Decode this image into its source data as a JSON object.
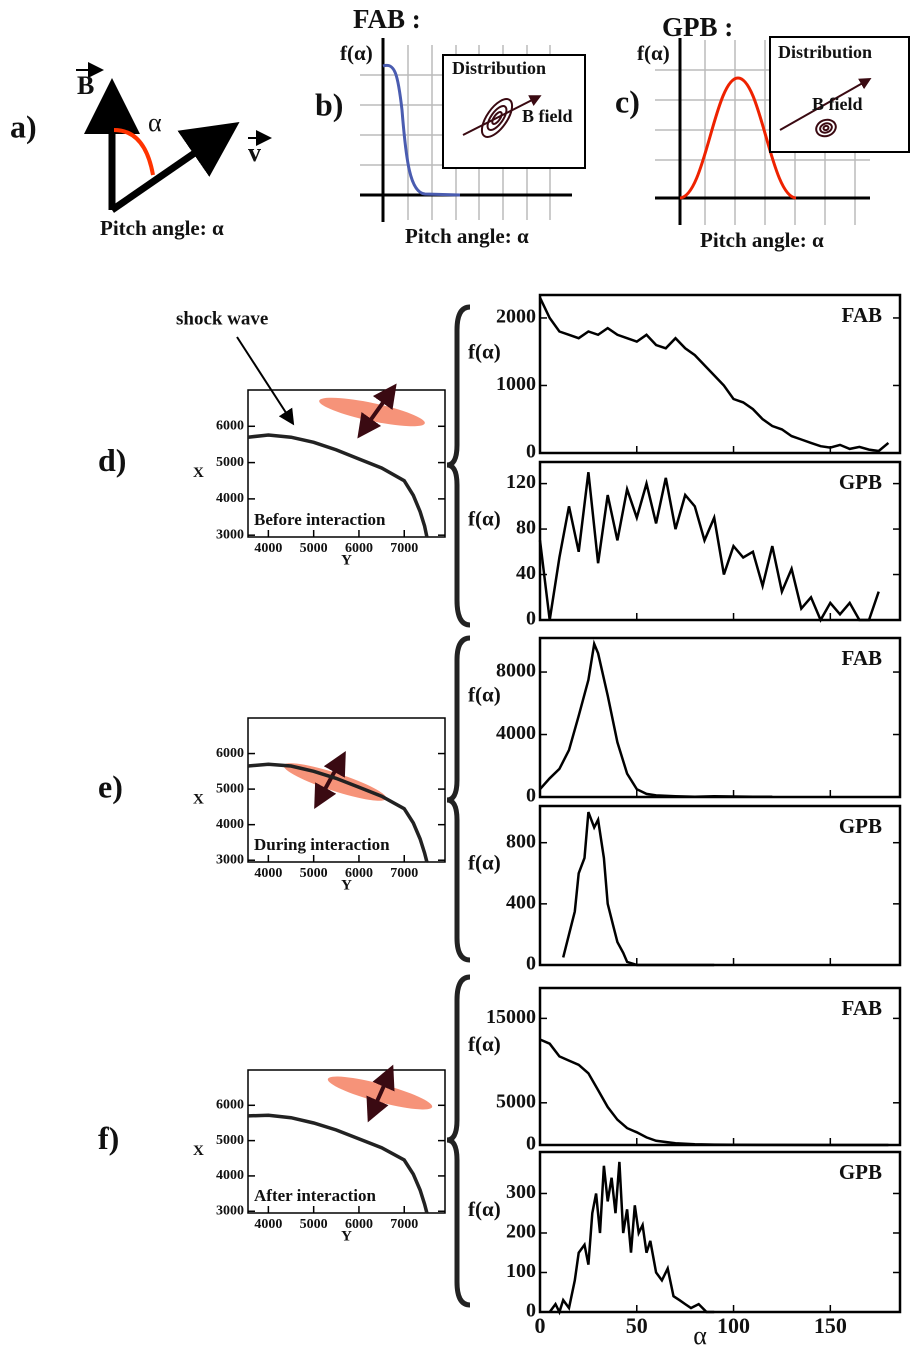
{
  "schematic": {
    "a": {
      "panel": "a)",
      "b_label": "B",
      "angle": "α",
      "v_label": "v",
      "caption": "Pitch angle: α"
    },
    "b": {
      "panel": "b)",
      "title": "FAB :",
      "ylabel": "f(α)",
      "inset_title": "Distribution",
      "inset_label": "B field",
      "caption": "Pitch angle: α"
    },
    "c": {
      "panel": "c)",
      "title": "GPB :",
      "ylabel": "f(α)",
      "inset_title": "Distribution",
      "inset_label": "B field",
      "caption": "Pitch angle: α"
    }
  },
  "chart_data": [
    {
      "type": "line",
      "panel": "d)",
      "callout": "shock wave",
      "annotation": "Before interaction",
      "xlabel": "Y",
      "ylabel": "X",
      "color": "#222222",
      "x": [
        3550,
        4000,
        4500,
        5000,
        5500,
        6000,
        6500,
        7000,
        7200,
        7350,
        7450,
        7500
      ],
      "values": [
        5700,
        5760,
        5700,
        5560,
        5350,
        5100,
        4850,
        4500,
        4100,
        3650,
        3250,
        2950
      ],
      "xlim": [
        3550,
        7900
      ],
      "ylim": [
        2950,
        7000
      ],
      "xticks": [
        4000,
        5000,
        6000,
        7000
      ],
      "yticks": [
        3000,
        4000,
        5000,
        6000
      ]
    },
    {
      "type": "line",
      "label": "FAB",
      "ylabel": "f(α)",
      "color": "#000000",
      "x": [
        0,
        5,
        10,
        15,
        20,
        25,
        30,
        35,
        40,
        45,
        50,
        55,
        60,
        65,
        70,
        75,
        80,
        85,
        90,
        95,
        100,
        105,
        110,
        115,
        120,
        125,
        130,
        135,
        140,
        145,
        150,
        155,
        160,
        165,
        170,
        175,
        180
      ],
      "values": [
        2300,
        2000,
        1800,
        1750,
        1700,
        1800,
        1750,
        1850,
        1750,
        1700,
        1650,
        1750,
        1600,
        1550,
        1700,
        1550,
        1450,
        1300,
        1150,
        1000,
        800,
        750,
        650,
        500,
        400,
        350,
        250,
        200,
        150,
        100,
        80,
        120,
        60,
        90,
        50,
        30,
        150
      ],
      "xlim": [
        0,
        186
      ],
      "ylim": [
        0,
        2340
      ],
      "xticks": [
        0,
        50,
        100,
        150
      ],
      "yticks": [
        0,
        1000,
        2000
      ]
    },
    {
      "type": "line",
      "label": "GPB",
      "ylabel": "f(α)",
      "color": "#000000",
      "x": [
        0,
        5,
        10,
        15,
        20,
        25,
        30,
        35,
        40,
        45,
        50,
        55,
        60,
        65,
        70,
        75,
        80,
        85,
        90,
        95,
        100,
        105,
        110,
        115,
        120,
        125,
        130,
        135,
        140,
        145,
        150,
        155,
        160,
        165,
        170,
        175
      ],
      "values": [
        70,
        0,
        55,
        100,
        60,
        130,
        50,
        110,
        70,
        115,
        90,
        120,
        85,
        125,
        80,
        110,
        100,
        70,
        90,
        40,
        65,
        55,
        60,
        30,
        65,
        25,
        45,
        10,
        20,
        0,
        15,
        5,
        15,
        0,
        0,
        25
      ],
      "xlim": [
        0,
        186
      ],
      "ylim": [
        0,
        139
      ],
      "xticks": [
        0,
        50,
        100,
        150
      ],
      "yticks": [
        0,
        40,
        80,
        120
      ]
    },
    {
      "type": "line",
      "panel": "e)",
      "annotation": "During interaction",
      "xlabel": "Y",
      "ylabel": "X",
      "color": "#222222",
      "x": [
        3550,
        4000,
        4500,
        5000,
        5500,
        6000,
        6500,
        7000,
        7200,
        7350,
        7450,
        7500
      ],
      "values": [
        5650,
        5700,
        5650,
        5500,
        5300,
        5050,
        4800,
        4450,
        4050,
        3600,
        3200,
        2950
      ],
      "xlim": [
        3550,
        7900
      ],
      "ylim": [
        2950,
        7000
      ],
      "xticks": [
        4000,
        5000,
        6000,
        7000
      ],
      "yticks": [
        3000,
        4000,
        5000,
        6000
      ]
    },
    {
      "type": "line",
      "label": "FAB",
      "ylabel": "f(α)",
      "color": "#000000",
      "x": [
        0,
        5,
        10,
        15,
        20,
        25,
        28,
        30,
        35,
        40,
        45,
        50,
        55,
        60,
        70,
        80,
        90,
        100,
        110,
        120
      ],
      "values": [
        500,
        1200,
        1800,
        3000,
        5200,
        7500,
        9800,
        9200,
        6500,
        3500,
        1500,
        500,
        200,
        100,
        50,
        20,
        50,
        30,
        20,
        20
      ],
      "xlim": [
        0,
        186
      ],
      "ylim": [
        0,
        10180
      ],
      "xticks": [
        0,
        50,
        100,
        150
      ],
      "yticks": [
        0,
        4000,
        8000
      ]
    },
    {
      "type": "line",
      "label": "GPB",
      "ylabel": "f(α)",
      "color": "#000000",
      "x": [
        12,
        15,
        18,
        20,
        23,
        25,
        28,
        30,
        33,
        35,
        38,
        40,
        43,
        45,
        50,
        60,
        70,
        80,
        90
      ],
      "values": [
        50,
        200,
        350,
        600,
        700,
        1000,
        900,
        950,
        700,
        400,
        250,
        150,
        80,
        20,
        0,
        0,
        0,
        0,
        0
      ],
      "xlim": [
        0,
        186
      ],
      "ylim": [
        0,
        1040
      ],
      "xticks": [
        0,
        50,
        100,
        150
      ],
      "yticks": [
        0,
        400,
        800
      ]
    },
    {
      "type": "line",
      "panel": "f)",
      "annotation": "After interaction",
      "xlabel": "Y",
      "ylabel": "X",
      "color": "#222222",
      "x": [
        3550,
        4000,
        4500,
        5000,
        5500,
        6000,
        6500,
        7000,
        7200,
        7350,
        7450,
        7500
      ],
      "values": [
        5700,
        5720,
        5650,
        5500,
        5300,
        5050,
        4800,
        4450,
        4050,
        3600,
        3200,
        2950
      ],
      "xlim": [
        3550,
        7900
      ],
      "ylim": [
        2950,
        7000
      ],
      "xticks": [
        4000,
        5000,
        6000,
        7000
      ],
      "yticks": [
        3000,
        4000,
        5000,
        6000
      ]
    },
    {
      "type": "line",
      "label": "FAB",
      "ylabel": "f(α)",
      "color": "#000000",
      "x": [
        0,
        5,
        10,
        15,
        20,
        25,
        30,
        35,
        40,
        45,
        50,
        55,
        60,
        70,
        80,
        90,
        100,
        120,
        150,
        180
      ],
      "values": [
        12500,
        12000,
        10500,
        10000,
        9500,
        8500,
        6500,
        4500,
        3000,
        2000,
        1500,
        900,
        500,
        200,
        100,
        50,
        20,
        10,
        0,
        0
      ],
      "xlim": [
        0,
        186
      ],
      "ylim": [
        0,
        18600
      ],
      "xticks": [
        0,
        50,
        100,
        150
      ],
      "yticks": [
        0,
        5000,
        15000
      ]
    },
    {
      "type": "line",
      "label": "GPB",
      "ylabel": "f(α)",
      "xlabel": "α",
      "color": "#000000",
      "x": [
        5,
        8,
        10,
        12,
        15,
        18,
        20,
        23,
        25,
        27,
        29,
        31,
        33,
        35,
        37,
        39,
        41,
        43,
        45,
        47,
        49,
        51,
        53,
        55,
        57,
        60,
        63,
        66,
        69,
        72,
        75,
        78,
        82,
        86,
        90
      ],
      "values": [
        0,
        20,
        0,
        30,
        10,
        80,
        150,
        170,
        120,
        250,
        300,
        200,
        370,
        280,
        340,
        250,
        380,
        200,
        260,
        150,
        270,
        200,
        220,
        150,
        180,
        100,
        80,
        110,
        40,
        30,
        20,
        10,
        20,
        0,
        0
      ],
      "xlim": [
        0,
        186
      ],
      "ylim": [
        0,
        405
      ],
      "xticks": [
        0,
        50,
        100,
        150
      ],
      "yticks": [
        0,
        100,
        200,
        300
      ]
    }
  ]
}
